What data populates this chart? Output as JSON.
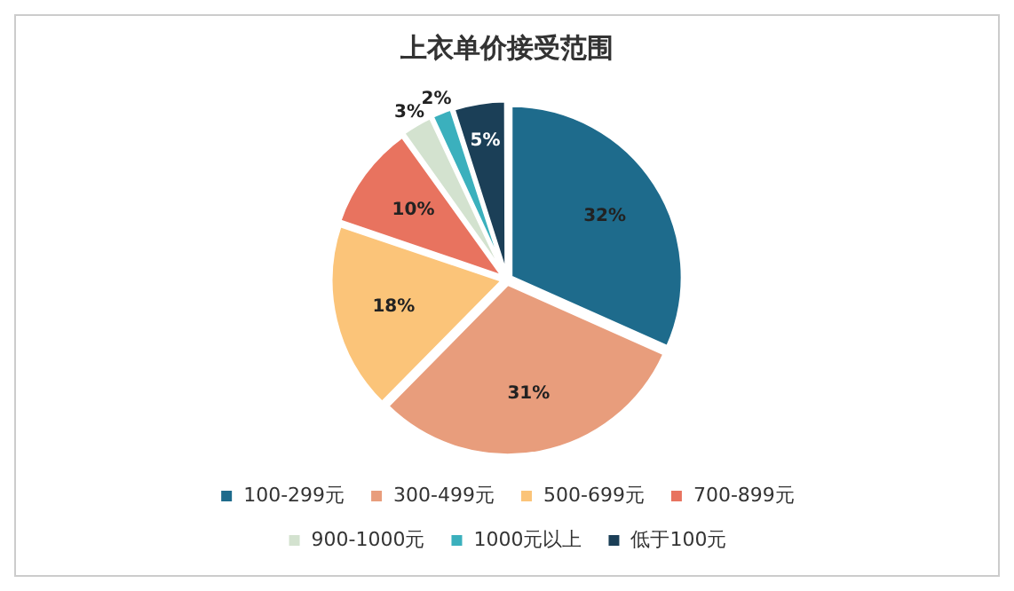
{
  "chart_data": {
    "type": "pie",
    "title": "上衣单价接受范围",
    "categories": [
      "100-299元",
      "300-499元",
      "500-699元",
      "700-899元",
      "900-1000元",
      "1000元以上",
      "低于100元"
    ],
    "values": [
      32,
      31,
      18,
      10,
      3,
      2,
      5
    ],
    "colors": [
      "#1e6b8c",
      "#e89d7c",
      "#fbc479",
      "#e8735f",
      "#d3e2cf",
      "#3bb0bd",
      "#1b3f57"
    ],
    "value_labels": [
      "32%",
      "31%",
      "18%",
      "10%",
      "3%",
      "2%",
      "5%"
    ],
    "legend": "bottom"
  }
}
